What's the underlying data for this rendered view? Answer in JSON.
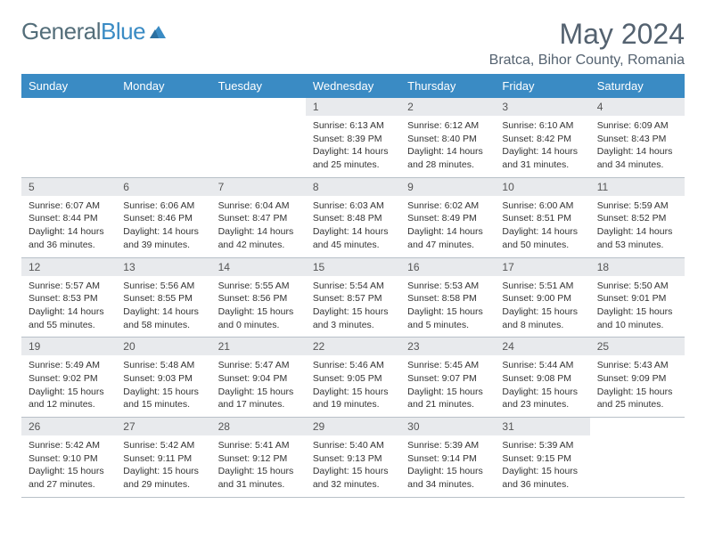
{
  "logo": {
    "general": "General",
    "blue": "Blue"
  },
  "title": "May 2024",
  "location": "Bratca, Bihor County, Romania",
  "colors": {
    "header_bar": "#3a8bc4",
    "daynum_bg": "#e8eaed",
    "text": "#333333",
    "title_text": "#546270",
    "divider": "#b8c0c8"
  },
  "weekdays": [
    "Sunday",
    "Monday",
    "Tuesday",
    "Wednesday",
    "Thursday",
    "Friday",
    "Saturday"
  ],
  "weeks": [
    [
      {
        "n": "",
        "t": ""
      },
      {
        "n": "",
        "t": ""
      },
      {
        "n": "",
        "t": ""
      },
      {
        "n": "1",
        "t": "Sunrise: 6:13 AM\nSunset: 8:39 PM\nDaylight: 14 hours and 25 minutes."
      },
      {
        "n": "2",
        "t": "Sunrise: 6:12 AM\nSunset: 8:40 PM\nDaylight: 14 hours and 28 minutes."
      },
      {
        "n": "3",
        "t": "Sunrise: 6:10 AM\nSunset: 8:42 PM\nDaylight: 14 hours and 31 minutes."
      },
      {
        "n": "4",
        "t": "Sunrise: 6:09 AM\nSunset: 8:43 PM\nDaylight: 14 hours and 34 minutes."
      }
    ],
    [
      {
        "n": "5",
        "t": "Sunrise: 6:07 AM\nSunset: 8:44 PM\nDaylight: 14 hours and 36 minutes."
      },
      {
        "n": "6",
        "t": "Sunrise: 6:06 AM\nSunset: 8:46 PM\nDaylight: 14 hours and 39 minutes."
      },
      {
        "n": "7",
        "t": "Sunrise: 6:04 AM\nSunset: 8:47 PM\nDaylight: 14 hours and 42 minutes."
      },
      {
        "n": "8",
        "t": "Sunrise: 6:03 AM\nSunset: 8:48 PM\nDaylight: 14 hours and 45 minutes."
      },
      {
        "n": "9",
        "t": "Sunrise: 6:02 AM\nSunset: 8:49 PM\nDaylight: 14 hours and 47 minutes."
      },
      {
        "n": "10",
        "t": "Sunrise: 6:00 AM\nSunset: 8:51 PM\nDaylight: 14 hours and 50 minutes."
      },
      {
        "n": "11",
        "t": "Sunrise: 5:59 AM\nSunset: 8:52 PM\nDaylight: 14 hours and 53 minutes."
      }
    ],
    [
      {
        "n": "12",
        "t": "Sunrise: 5:57 AM\nSunset: 8:53 PM\nDaylight: 14 hours and 55 minutes."
      },
      {
        "n": "13",
        "t": "Sunrise: 5:56 AM\nSunset: 8:55 PM\nDaylight: 14 hours and 58 minutes."
      },
      {
        "n": "14",
        "t": "Sunrise: 5:55 AM\nSunset: 8:56 PM\nDaylight: 15 hours and 0 minutes."
      },
      {
        "n": "15",
        "t": "Sunrise: 5:54 AM\nSunset: 8:57 PM\nDaylight: 15 hours and 3 minutes."
      },
      {
        "n": "16",
        "t": "Sunrise: 5:53 AM\nSunset: 8:58 PM\nDaylight: 15 hours and 5 minutes."
      },
      {
        "n": "17",
        "t": "Sunrise: 5:51 AM\nSunset: 9:00 PM\nDaylight: 15 hours and 8 minutes."
      },
      {
        "n": "18",
        "t": "Sunrise: 5:50 AM\nSunset: 9:01 PM\nDaylight: 15 hours and 10 minutes."
      }
    ],
    [
      {
        "n": "19",
        "t": "Sunrise: 5:49 AM\nSunset: 9:02 PM\nDaylight: 15 hours and 12 minutes."
      },
      {
        "n": "20",
        "t": "Sunrise: 5:48 AM\nSunset: 9:03 PM\nDaylight: 15 hours and 15 minutes."
      },
      {
        "n": "21",
        "t": "Sunrise: 5:47 AM\nSunset: 9:04 PM\nDaylight: 15 hours and 17 minutes."
      },
      {
        "n": "22",
        "t": "Sunrise: 5:46 AM\nSunset: 9:05 PM\nDaylight: 15 hours and 19 minutes."
      },
      {
        "n": "23",
        "t": "Sunrise: 5:45 AM\nSunset: 9:07 PM\nDaylight: 15 hours and 21 minutes."
      },
      {
        "n": "24",
        "t": "Sunrise: 5:44 AM\nSunset: 9:08 PM\nDaylight: 15 hours and 23 minutes."
      },
      {
        "n": "25",
        "t": "Sunrise: 5:43 AM\nSunset: 9:09 PM\nDaylight: 15 hours and 25 minutes."
      }
    ],
    [
      {
        "n": "26",
        "t": "Sunrise: 5:42 AM\nSunset: 9:10 PM\nDaylight: 15 hours and 27 minutes."
      },
      {
        "n": "27",
        "t": "Sunrise: 5:42 AM\nSunset: 9:11 PM\nDaylight: 15 hours and 29 minutes."
      },
      {
        "n": "28",
        "t": "Sunrise: 5:41 AM\nSunset: 9:12 PM\nDaylight: 15 hours and 31 minutes."
      },
      {
        "n": "29",
        "t": "Sunrise: 5:40 AM\nSunset: 9:13 PM\nDaylight: 15 hours and 32 minutes."
      },
      {
        "n": "30",
        "t": "Sunrise: 5:39 AM\nSunset: 9:14 PM\nDaylight: 15 hours and 34 minutes."
      },
      {
        "n": "31",
        "t": "Sunrise: 5:39 AM\nSunset: 9:15 PM\nDaylight: 15 hours and 36 minutes."
      },
      {
        "n": "",
        "t": ""
      }
    ]
  ]
}
